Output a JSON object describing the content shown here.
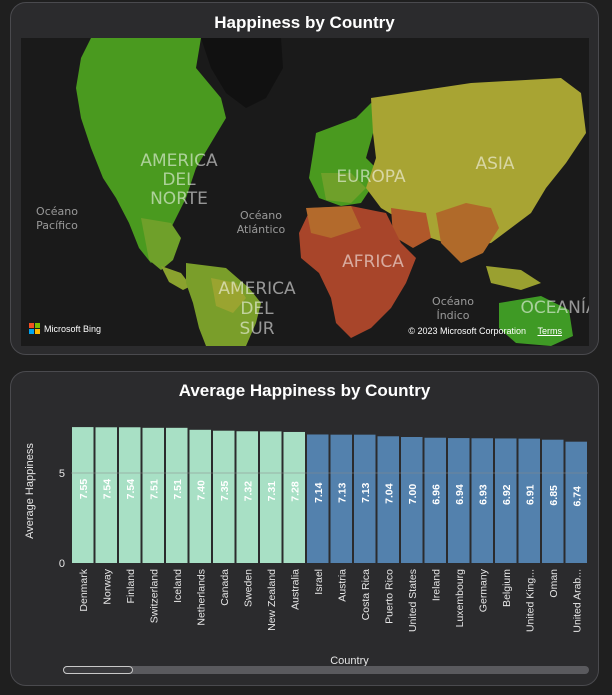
{
  "map_card": {
    "title": "Happiness by Country",
    "labels": {
      "north_america": [
        "AMERICA",
        "DEL",
        "NORTE"
      ],
      "south_america": [
        "AMERICA",
        "DEL",
        "SUR"
      ],
      "europe": "EUROPA",
      "asia": "ASIA",
      "africa": "AFRICA",
      "oceania": "OCEANÍA",
      "pacific": [
        "Océano",
        "Pacífico"
      ],
      "atlantic": [
        "Océano",
        "Atlántico"
      ],
      "indian": [
        "Océano",
        "Índico"
      ]
    },
    "attribution": {
      "brand": "Microsoft Bing",
      "copyright": "© 2023 Microsoft Corporation",
      "terms": "Terms"
    },
    "colors": {
      "ocean": "#1a1a1a",
      "high": "#4a9a1f",
      "mid": "#a8a433",
      "low": "#a8452a"
    }
  },
  "chart_card": {
    "title": "Average Happiness by Country"
  },
  "chart_data": {
    "type": "bar",
    "title": "Average Happiness by Country",
    "xlabel": "Country",
    "ylabel": "Average Happiness",
    "ylim": [
      0,
      8
    ],
    "yticks": [
      0,
      5
    ],
    "grid": false,
    "categories": [
      "Denmark",
      "Norway",
      "Finland",
      "Switzerland",
      "Iceland",
      "Netherlands",
      "Canada",
      "Sweden",
      "New Zealand",
      "Australia",
      "Israel",
      "Austria",
      "Costa Rica",
      "Puerto Rico",
      "United States",
      "Ireland",
      "Luxembourg",
      "Germany",
      "Belgium",
      "United King...",
      "Oman",
      "United Arab..."
    ],
    "values": [
      7.55,
      7.54,
      7.54,
      7.51,
      7.51,
      7.4,
      7.35,
      7.32,
      7.31,
      7.28,
      7.14,
      7.13,
      7.13,
      7.04,
      7.0,
      6.96,
      6.94,
      6.93,
      6.92,
      6.91,
      6.85,
      6.74
    ],
    "value_labels": [
      "7.55",
      "7.54",
      "7.54",
      "7.51",
      "7.51",
      "7.40",
      "7.35",
      "7.32",
      "7.31",
      "7.28",
      "7.14",
      "7.13",
      "7.13",
      "7.04",
      "7.00",
      "6.96",
      "6.94",
      "6.93",
      "6.92",
      "6.91",
      "6.85",
      "6.74"
    ],
    "highlighted_count": 10,
    "colors": {
      "highlight": "#a8e0c5",
      "default": "#5381ad"
    }
  }
}
